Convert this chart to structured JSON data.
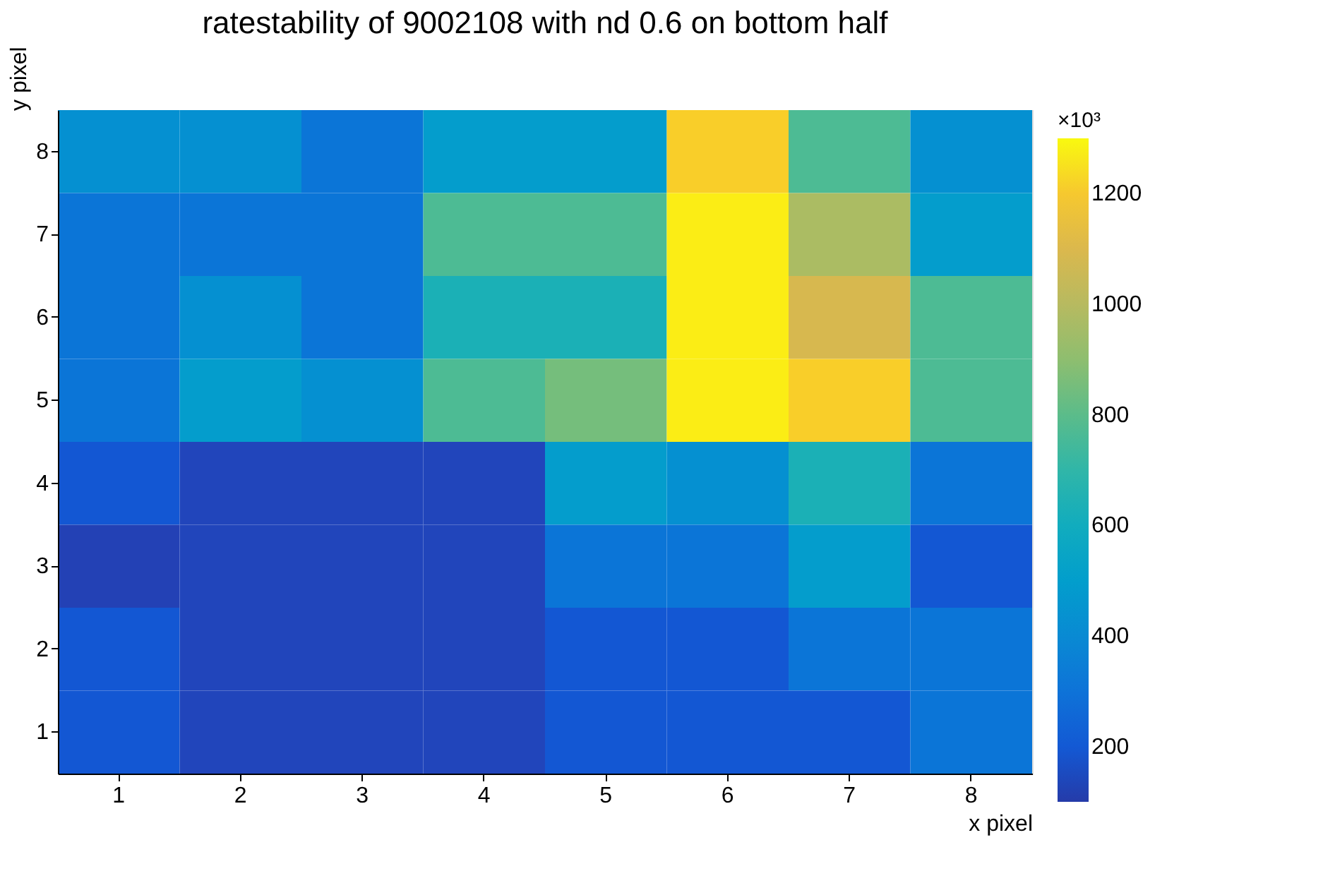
{
  "chart_data": {
    "type": "heatmap",
    "title": "ratestability of 9002108 with nd 0.6 on bottom half",
    "xlabel": "x pixel",
    "ylabel": "y pixel",
    "clabel": "×10³",
    "categories": [
      "1",
      "2",
      "3",
      "4",
      "5",
      "6",
      "7",
      "8"
    ],
    "y_categories": [
      "8",
      "7",
      "6",
      "5",
      "4",
      "3",
      "2",
      "1"
    ],
    "cells": [
      [
        430,
        430,
        310,
        490,
        490,
        1220,
        770,
        430
      ],
      [
        310,
        310,
        310,
        770,
        770,
        1280,
        970,
        490
      ],
      [
        310,
        430,
        310,
        640,
        640,
        1280,
        1090,
        770
      ],
      [
        310,
        490,
        430,
        770,
        850,
        1280,
        1220,
        770
      ],
      [
        190,
        130,
        130,
        130,
        490,
        430,
        640,
        310
      ],
      [
        120,
        130,
        130,
        130,
        310,
        310,
        490,
        190
      ],
      [
        190,
        130,
        130,
        130,
        190,
        190,
        310,
        310
      ],
      [
        190,
        130,
        130,
        130,
        190,
        190,
        190,
        310
      ]
    ],
    "clim": [
      100,
      1300
    ],
    "cticks": [
      200,
      400,
      600,
      800,
      1000,
      1200
    ]
  }
}
